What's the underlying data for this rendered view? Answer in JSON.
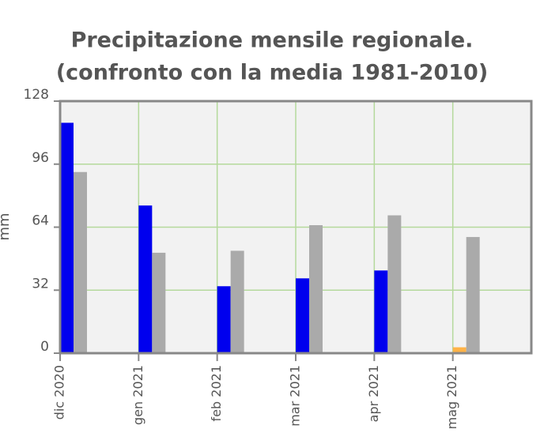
{
  "chart_data": {
    "type": "bar",
    "title": [
      "Precipitazione mensile regionale.",
      "(confronto con la media 1981-2010)"
    ],
    "y_label": "mm",
    "categories": [
      "dic 2020",
      "gen 2021",
      "feb 2021",
      "mar 2021",
      "apr 2021",
      "mag 2021"
    ],
    "series": [
      {
        "colors": [
          "#0000ee",
          "#0000ee",
          "#0000ee",
          "#0000ee",
          "#0000ee",
          "#ffb347"
        ],
        "values": [
          117,
          75,
          34,
          38,
          42,
          3
        ]
      },
      {
        "color": "#aaaaaa",
        "values": [
          92,
          51,
          52,
          65,
          70,
          59
        ]
      }
    ],
    "ylim": [
      0,
      128
    ],
    "yticks": [
      0,
      32,
      64,
      96,
      128
    ],
    "grid": true
  }
}
